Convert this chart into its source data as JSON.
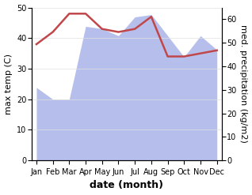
{
  "months": [
    "Jan",
    "Feb",
    "Mar",
    "Apr",
    "May",
    "Jun",
    "Jul",
    "Aug",
    "Sep",
    "Oct",
    "Nov",
    "Dec"
  ],
  "temperature": [
    38,
    42,
    48,
    48,
    43,
    42,
    43,
    47,
    34,
    34,
    35,
    36
  ],
  "precipitation": [
    31,
    26,
    26,
    57,
    56,
    53,
    61,
    62,
    53,
    44,
    53,
    47
  ],
  "temp_color": "#c0474a",
  "precip_color": "#aab4e8",
  "temp_ylim": [
    0,
    50
  ],
  "precip_ylim": [
    0,
    65
  ],
  "temp_ylabel": "max temp (C)",
  "precip_ylabel": "med. precipitation (kg/m2)",
  "xlabel": "date (month)",
  "xlabel_fontsize": 9,
  "ylabel_fontsize": 8,
  "tick_fontsize": 7,
  "precip_yticks": [
    0,
    10,
    20,
    30,
    40,
    50,
    60
  ],
  "temp_yticks": [
    0,
    10,
    20,
    30,
    40,
    50
  ]
}
